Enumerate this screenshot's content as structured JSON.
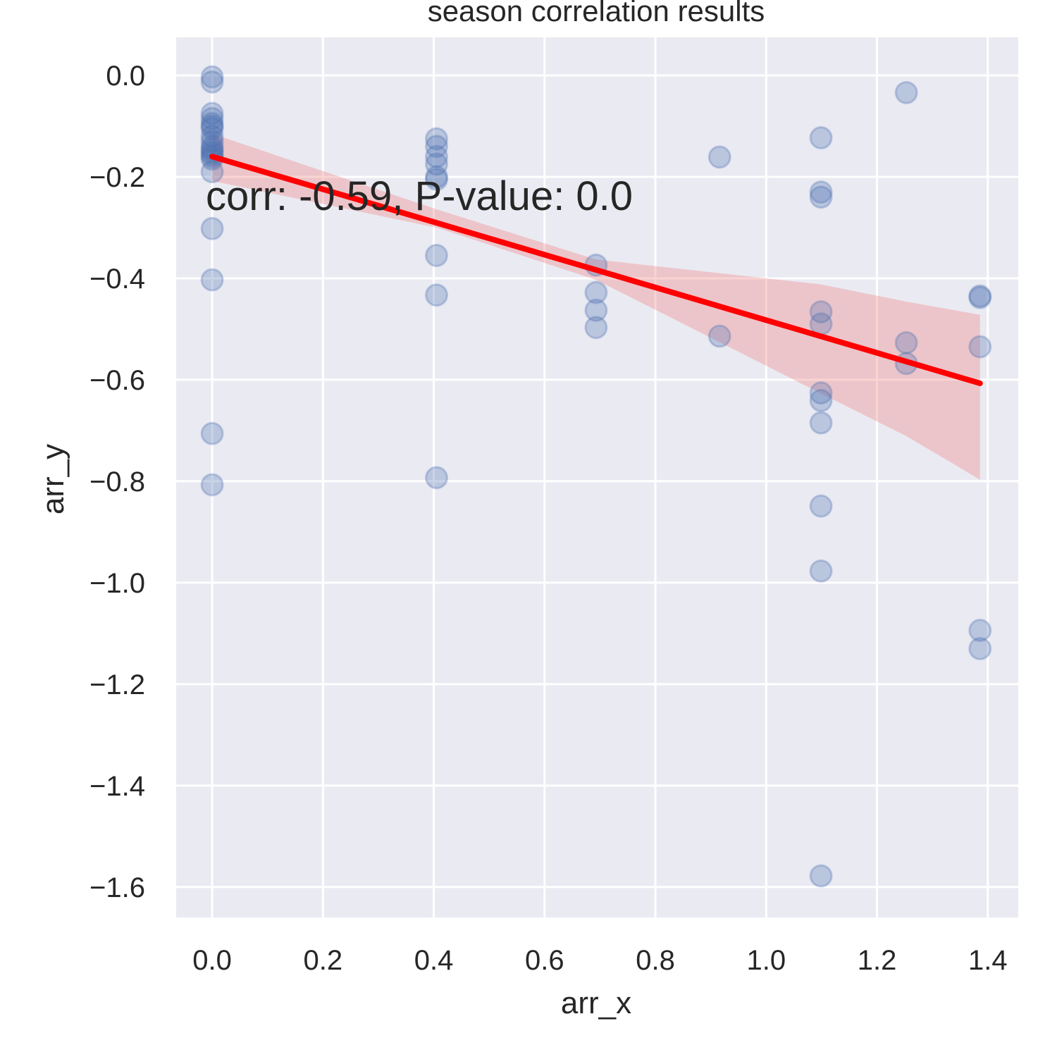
{
  "chart_data": {
    "type": "scatter",
    "title": "season correlation results",
    "xlabel": "arr_x",
    "ylabel": "arr_y",
    "xlim": [
      -0.065,
      1.455
    ],
    "ylim": [
      -1.66,
      0.075
    ],
    "xticks": [
      0.0,
      0.2,
      0.4,
      0.6,
      0.8,
      1.0,
      1.2,
      1.4
    ],
    "xtick_labels": [
      "0.0",
      "0.2",
      "0.4",
      "0.6",
      "0.8",
      "1.0",
      "1.2",
      "1.4"
    ],
    "yticks": [
      0.0,
      -0.2,
      -0.4,
      -0.6,
      -0.8,
      -1.0,
      -1.2,
      -1.4,
      -1.6
    ],
    "ytick_labels": [
      "0.0",
      "−0.2",
      "−0.4",
      "−0.6",
      "−0.8",
      "−1.0",
      "−1.2",
      "−1.4",
      "−1.6"
    ],
    "grid": true,
    "annotation": "corr: -0.59, P-value: 0.0",
    "colors": {
      "background": "#eaeaf2",
      "grid": "#ffffff",
      "points": "#4c72b0",
      "regression_line": "#ff0000",
      "confidence_band": "#f08080"
    },
    "points": [
      [
        0.0,
        -0.003
      ],
      [
        0.0,
        -0.013
      ],
      [
        0.0,
        -0.075
      ],
      [
        0.0,
        -0.085
      ],
      [
        0.0,
        -0.095
      ],
      [
        0.0,
        -0.1
      ],
      [
        0.0,
        -0.105
      ],
      [
        0.0,
        -0.12
      ],
      [
        0.0,
        -0.13
      ],
      [
        0.0,
        -0.14
      ],
      [
        0.0,
        -0.145
      ],
      [
        0.0,
        -0.15
      ],
      [
        0.0,
        -0.155
      ],
      [
        0.0,
        -0.16
      ],
      [
        0.0,
        -0.165
      ],
      [
        0.0,
        -0.19
      ],
      [
        0.0,
        -0.302
      ],
      [
        0.0,
        -0.403
      ],
      [
        0.0,
        -0.706
      ],
      [
        0.0,
        -0.807
      ],
      [
        0.405,
        -0.125
      ],
      [
        0.405,
        -0.14
      ],
      [
        0.405,
        -0.16
      ],
      [
        0.405,
        -0.175
      ],
      [
        0.405,
        -0.2
      ],
      [
        0.405,
        -0.205
      ],
      [
        0.405,
        -0.355
      ],
      [
        0.405,
        -0.433
      ],
      [
        0.405,
        -0.793
      ],
      [
        0.693,
        -0.374
      ],
      [
        0.693,
        -0.428
      ],
      [
        0.693,
        -0.463
      ],
      [
        0.693,
        -0.497
      ],
      [
        0.916,
        -0.161
      ],
      [
        0.916,
        -0.514
      ],
      [
        1.099,
        -0.123
      ],
      [
        1.099,
        -0.23
      ],
      [
        1.099,
        -0.24
      ],
      [
        1.099,
        -0.466
      ],
      [
        1.099,
        -0.49
      ],
      [
        1.099,
        -0.626
      ],
      [
        1.099,
        -0.641
      ],
      [
        1.099,
        -0.685
      ],
      [
        1.099,
        -0.849
      ],
      [
        1.099,
        -0.977
      ],
      [
        1.099,
        -1.578
      ],
      [
        1.253,
        -0.034
      ],
      [
        1.253,
        -0.527
      ],
      [
        1.253,
        -0.568
      ],
      [
        1.386,
        -0.435
      ],
      [
        1.386,
        -0.438
      ],
      [
        1.386,
        -0.535
      ],
      [
        1.386,
        -1.094
      ],
      [
        1.386,
        -1.13
      ]
    ],
    "regression_line": [
      [
        0.0,
        -0.16
      ],
      [
        1.386,
        -0.607
      ]
    ],
    "confidence_band": {
      "x": [
        0.0,
        0.405,
        0.693,
        1.099,
        1.253,
        1.386
      ],
      "upper": [
        -0.115,
        -0.264,
        -0.363,
        -0.412,
        -0.446,
        -0.472
      ],
      "lower": [
        -0.208,
        -0.3,
        -0.403,
        -0.627,
        -0.711,
        -0.797
      ]
    }
  }
}
